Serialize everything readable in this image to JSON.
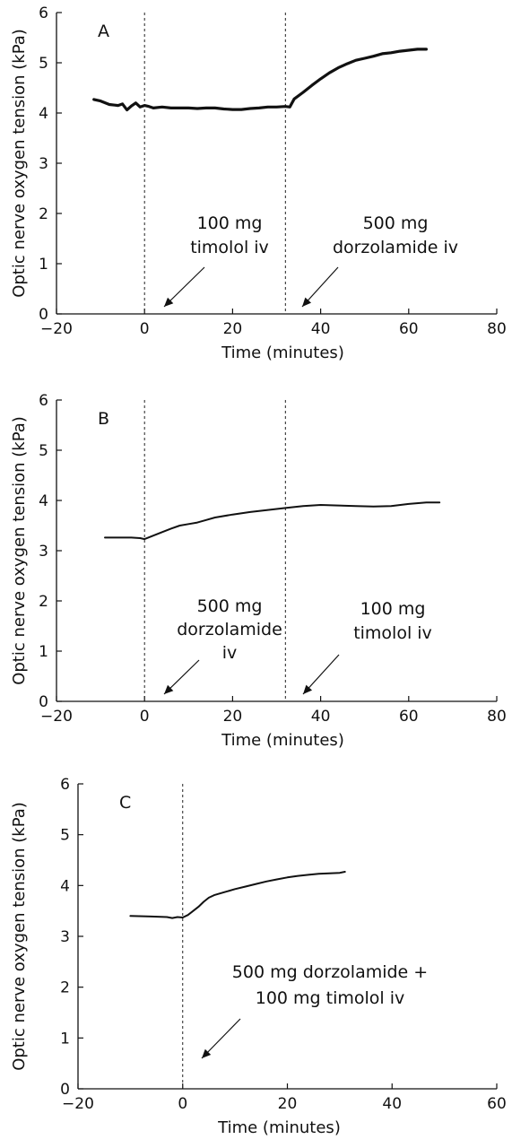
{
  "chart_data": [
    {
      "type": "line",
      "panel_label": "A",
      "xlabel": "Time (minutes)",
      "ylabel": "Optic nerve oxygen tension (kPa)",
      "xlim": [
        -20,
        80
      ],
      "ylim": [
        0,
        6
      ],
      "x_ticks": [
        -20,
        0,
        20,
        40,
        60,
        80
      ],
      "y_ticks": [
        0,
        1,
        2,
        3,
        4,
        5,
        6
      ],
      "grid": false,
      "series": [
        {
          "x": [
            -11.5,
            -10,
            -8,
            -6,
            -5,
            -4,
            -3,
            -2,
            -1,
            0,
            1,
            2,
            4,
            6,
            8,
            10,
            12,
            14,
            16,
            18,
            20,
            22,
            24,
            26,
            28,
            30,
            32,
            33,
            34,
            36,
            38,
            40,
            42,
            44,
            46,
            48,
            50,
            52,
            54,
            56,
            58,
            60,
            62,
            64
          ],
          "y": [
            4.27,
            4.24,
            4.17,
            4.15,
            4.18,
            4.06,
            4.14,
            4.2,
            4.12,
            4.15,
            4.13,
            4.1,
            4.12,
            4.1,
            4.1,
            4.1,
            4.09,
            4.1,
            4.1,
            4.08,
            4.07,
            4.07,
            4.09,
            4.1,
            4.12,
            4.12,
            4.13,
            4.12,
            4.28,
            4.41,
            4.55,
            4.68,
            4.8,
            4.9,
            4.98,
            5.05,
            5.09,
            5.13,
            5.18,
            5.2,
            5.23,
            5.25,
            5.27,
            5.27
          ]
        }
      ],
      "vlines_x": [
        0,
        32
      ],
      "annotations": [
        {
          "lines": [
            "100 mg",
            "timolol iv"
          ],
          "x": 0
        },
        {
          "lines": [
            "500 mg",
            "dorzolamide iv"
          ],
          "x": 32
        }
      ]
    },
    {
      "type": "line",
      "panel_label": "B",
      "xlabel": "Time (minutes)",
      "ylabel": "Optic nerve oxygen tension (kPa)",
      "xlim": [
        -20,
        80
      ],
      "ylim": [
        0,
        6
      ],
      "x_ticks": [
        -20,
        0,
        20,
        40,
        60,
        80
      ],
      "y_ticks": [
        0,
        1,
        2,
        3,
        4,
        5,
        6
      ],
      "grid": false,
      "series": [
        {
          "x": [
            -9,
            -6,
            -3,
            -1,
            0,
            2,
            4,
            6,
            8,
            10,
            12,
            14,
            16,
            20,
            24,
            28,
            32,
            36,
            40,
            44,
            48,
            52,
            56,
            60,
            64,
            67
          ],
          "y": [
            3.26,
            3.26,
            3.26,
            3.25,
            3.23,
            3.3,
            3.37,
            3.44,
            3.5,
            3.53,
            3.56,
            3.61,
            3.66,
            3.72,
            3.77,
            3.81,
            3.85,
            3.89,
            3.91,
            3.9,
            3.89,
            3.88,
            3.89,
            3.93,
            3.96,
            3.96
          ]
        }
      ],
      "vlines_x": [
        0,
        32
      ],
      "annotations": [
        {
          "lines": [
            "500 mg",
            "dorzolamide",
            "iv"
          ],
          "x": 0
        },
        {
          "lines": [
            "100 mg",
            "timolol iv"
          ],
          "x": 32
        }
      ]
    },
    {
      "type": "line",
      "panel_label": "C",
      "xlabel": "Time (minutes)",
      "ylabel": "Optic nerve oxygen tension (kPa)",
      "xlim": [
        -20,
        60
      ],
      "ylim": [
        0,
        6
      ],
      "x_ticks": [
        -20,
        0,
        20,
        40,
        60
      ],
      "y_ticks": [
        0,
        1,
        2,
        3,
        4,
        5,
        6
      ],
      "grid": false,
      "series": [
        {
          "x": [
            -10,
            -6,
            -3,
            -2,
            -1,
            0,
            1,
            2,
            3,
            4,
            5,
            6,
            8,
            10,
            12,
            14,
            16,
            18,
            20,
            22,
            24,
            26,
            28,
            30,
            31
          ],
          "y": [
            3.4,
            3.39,
            3.38,
            3.36,
            3.38,
            3.37,
            3.42,
            3.5,
            3.58,
            3.68,
            3.76,
            3.81,
            3.87,
            3.93,
            3.98,
            4.03,
            4.08,
            4.12,
            4.16,
            4.19,
            4.21,
            4.23,
            4.24,
            4.25,
            4.27
          ]
        }
      ],
      "vlines_x": [
        0
      ],
      "annotations": [
        {
          "lines": [
            "500 mg dorzolamide +",
            "100 mg timolol iv"
          ],
          "x": 0
        }
      ]
    }
  ]
}
